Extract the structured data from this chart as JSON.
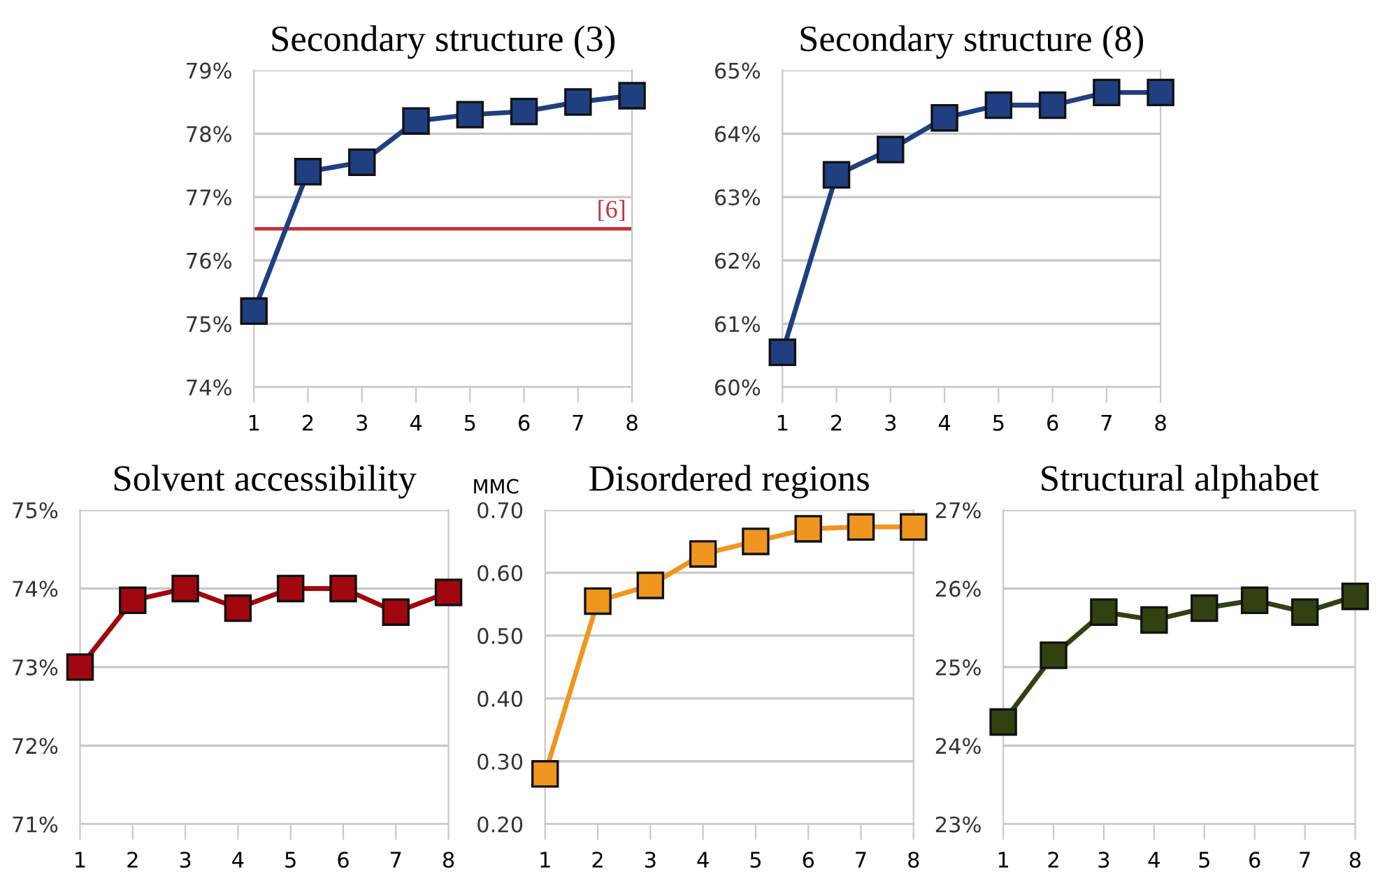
{
  "chart_data": [
    {
      "type": "line",
      "title": "Secondary structure (3)",
      "x": [
        1,
        2,
        3,
        4,
        5,
        6,
        7,
        8
      ],
      "xlim": [
        1,
        8
      ],
      "xticks": [
        1,
        2,
        3,
        4,
        5,
        6,
        7,
        8
      ],
      "ylim": [
        74,
        79
      ],
      "yticks": [
        {
          "value": 74,
          "label": "74%"
        },
        {
          "value": 75,
          "label": "75%"
        },
        {
          "value": 76,
          "label": "76%"
        },
        {
          "value": 77,
          "label": "77%"
        },
        {
          "value": 78,
          "label": "78%"
        },
        {
          "value": 79,
          "label": "79%"
        }
      ],
      "grid": "y",
      "marker": "square",
      "line_style": "solid",
      "series": [
        {
          "color": "#1f3f80",
          "values": [
            75.2,
            77.4,
            77.55,
            78.2,
            78.3,
            78.35,
            78.5,
            78.6
          ]
        }
      ],
      "ref_lines": [
        {
          "axis": "y",
          "value": 76.5,
          "color": "#c8323c"
        }
      ],
      "annotations": [
        {
          "text": "[6]",
          "x": 8,
          "y": 76.5
        }
      ]
    },
    {
      "type": "line",
      "title": "Secondary structure (8)",
      "x": [
        1,
        2,
        3,
        4,
        5,
        6,
        7,
        8
      ],
      "xlim": [
        1,
        8
      ],
      "xticks": [
        1,
        2,
        3,
        4,
        5,
        6,
        7,
        8
      ],
      "ylim": [
        60,
        65
      ],
      "yticks": [
        {
          "value": 60,
          "label": "60%"
        },
        {
          "value": 61,
          "label": "61%"
        },
        {
          "value": 62,
          "label": "62%"
        },
        {
          "value": 63,
          "label": "63%"
        },
        {
          "value": 64,
          "label": "64%"
        },
        {
          "value": 65,
          "label": "65%"
        }
      ],
      "grid": "y",
      "marker": "square",
      "line_style": "solid",
      "series": [
        {
          "color": "#1f3f80",
          "values": [
            60.55,
            63.35,
            63.75,
            64.25,
            64.45,
            64.45,
            64.65,
            64.65
          ]
        }
      ]
    },
    {
      "type": "line",
      "title": "Solvent accessibility",
      "x": [
        1,
        2,
        3,
        4,
        5,
        6,
        7,
        8
      ],
      "xlim": [
        1,
        8
      ],
      "xticks": [
        1,
        2,
        3,
        4,
        5,
        6,
        7,
        8
      ],
      "ylim": [
        71,
        75
      ],
      "yticks": [
        {
          "value": 71,
          "label": "71%"
        },
        {
          "value": 72,
          "label": "72%"
        },
        {
          "value": 73,
          "label": "73%"
        },
        {
          "value": 74,
          "label": "74%"
        },
        {
          "value": 75,
          "label": "75%"
        }
      ],
      "grid": "y",
      "marker": "square",
      "line_style": "solid",
      "series": [
        {
          "color": "#a0070f",
          "values": [
            73.0,
            73.85,
            74.0,
            73.75,
            74.0,
            74.0,
            73.7,
            73.95
          ]
        }
      ]
    },
    {
      "type": "line",
      "title": "Disordered regions",
      "ylabel": "MMC",
      "x": [
        1,
        2,
        3,
        4,
        5,
        6,
        7,
        8
      ],
      "xlim": [
        1,
        8
      ],
      "xticks": [
        1,
        2,
        3,
        4,
        5,
        6,
        7,
        8
      ],
      "ylim": [
        0.2,
        0.7
      ],
      "yticks": [
        {
          "value": 0.2,
          "label": "0.20"
        },
        {
          "value": 0.3,
          "label": "0.30"
        },
        {
          "value": 0.4,
          "label": "0.40"
        },
        {
          "value": 0.5,
          "label": "0.50"
        },
        {
          "value": 0.6,
          "label": "0.60"
        },
        {
          "value": 0.7,
          "label": "0.70"
        }
      ],
      "grid": "y",
      "marker": "square",
      "line_style": "solid",
      "series": [
        {
          "color": "#f0961e",
          "values": [
            0.28,
            0.555,
            0.58,
            0.63,
            0.65,
            0.67,
            0.673,
            0.673
          ]
        }
      ]
    },
    {
      "type": "line",
      "title": "Structural alphabet",
      "x": [
        1,
        2,
        3,
        4,
        5,
        6,
        7,
        8
      ],
      "xlim": [
        1,
        8
      ],
      "xticks": [
        1,
        2,
        3,
        4,
        5,
        6,
        7,
        8
      ],
      "ylim": [
        23,
        27
      ],
      "yticks": [
        {
          "value": 23,
          "label": "23%"
        },
        {
          "value": 24,
          "label": "24%"
        },
        {
          "value": 25,
          "label": "25%"
        },
        {
          "value": 26,
          "label": "26%"
        },
        {
          "value": 27,
          "label": "27%"
        }
      ],
      "grid": "y",
      "marker": "square",
      "line_style": "solid",
      "series": [
        {
          "color": "#334010",
          "values": [
            24.3,
            25.15,
            25.7,
            25.6,
            25.75,
            25.85,
            25.7,
            25.9
          ]
        }
      ]
    }
  ]
}
